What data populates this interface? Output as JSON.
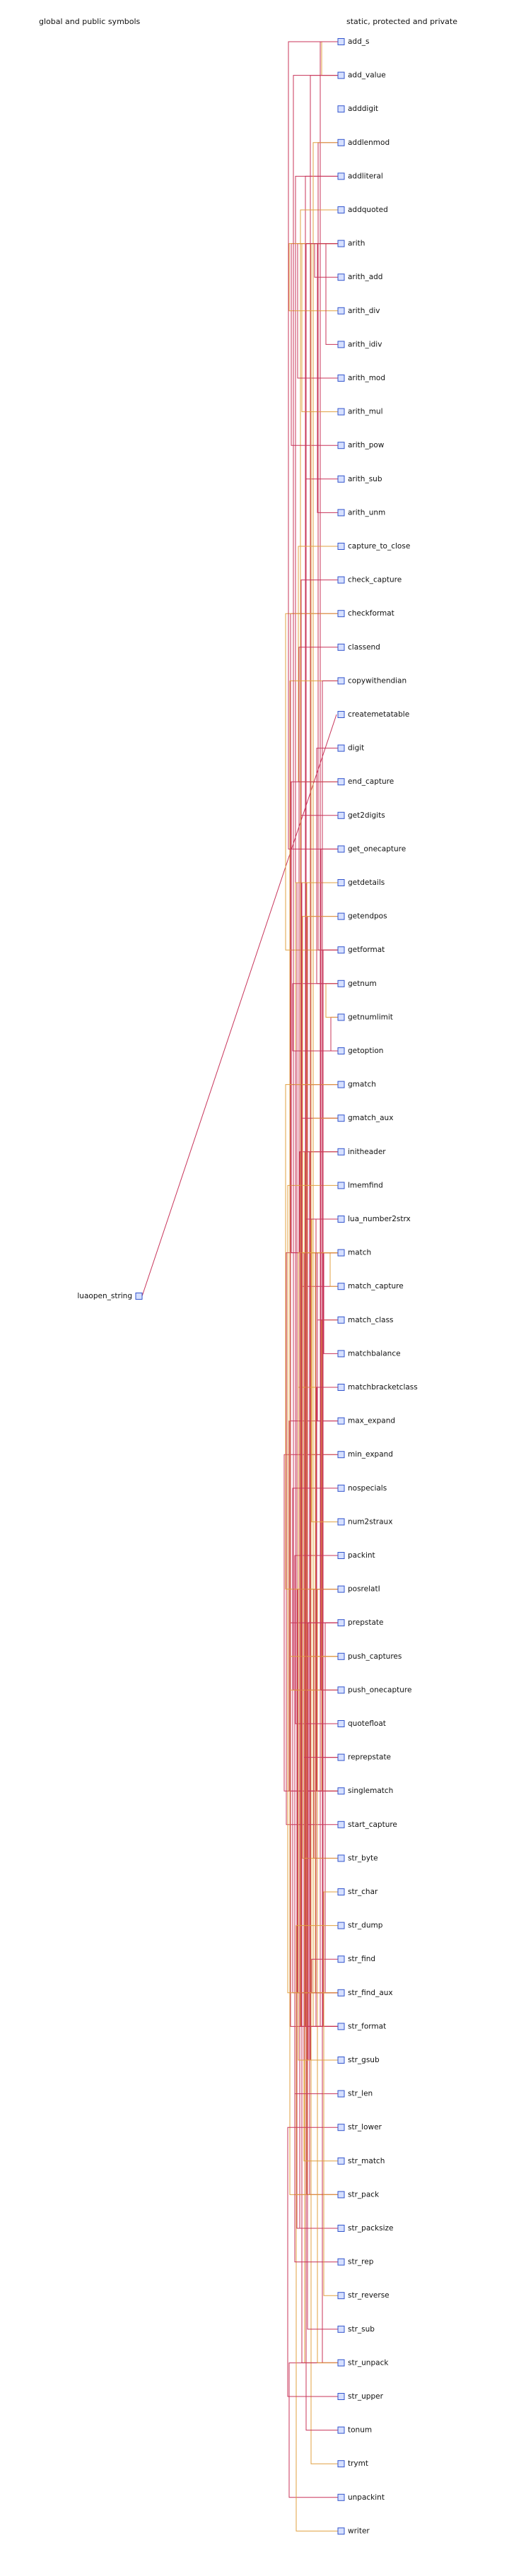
{
  "headers": {
    "left": "global and public symbols",
    "right": "static, protected and private"
  },
  "public_symbols": [
    "luaopen_string"
  ],
  "private_symbols": [
    "add_s",
    "add_value",
    "adddigit",
    "addlenmod",
    "addliteral",
    "addquoted",
    "arith",
    "arith_add",
    "arith_div",
    "arith_idiv",
    "arith_mod",
    "arith_mul",
    "arith_pow",
    "arith_sub",
    "arith_unm",
    "capture_to_close",
    "check_capture",
    "checkformat",
    "classend",
    "copywithendian",
    "createmetatable",
    "digit",
    "end_capture",
    "get2digits",
    "get_onecapture",
    "getdetails",
    "getendpos",
    "getformat",
    "getnum",
    "getnumlimit",
    "getoption",
    "gmatch",
    "gmatch_aux",
    "initheader",
    "lmemfind",
    "lua_number2strx",
    "match",
    "match_capture",
    "match_class",
    "matchbalance",
    "matchbracketclass",
    "max_expand",
    "min_expand",
    "nospecials",
    "num2straux",
    "packint",
    "posrelatI",
    "prepstate",
    "push_captures",
    "push_onecapture",
    "quotefloat",
    "reprepstate",
    "singlematch",
    "start_capture",
    "str_byte",
    "str_char",
    "str_dump",
    "str_find",
    "str_find_aux",
    "str_format",
    "str_gsub",
    "str_len",
    "str_lower",
    "str_match",
    "str_pack",
    "str_packsize",
    "str_rep",
    "str_reverse",
    "str_sub",
    "str_unpack",
    "str_upper",
    "tonum",
    "trymt",
    "unpackint",
    "writer"
  ],
  "colors": {
    "node_fill": "#d6e0ff",
    "node_stroke": "#3355cc",
    "edge_primary": "#c8345a",
    "edge_secondary": "#e0a040",
    "text": "#111111"
  },
  "edges": [
    [
      "luaopen_string",
      "createmetatable"
    ],
    [
      "str_format",
      "add_s"
    ],
    [
      "add_value",
      "add_s"
    ],
    [
      "str_gsub",
      "add_value"
    ],
    [
      "str_format",
      "addliteral"
    ],
    [
      "str_format",
      "addquoted"
    ],
    [
      "addliteral",
      "quotefloat"
    ],
    [
      "str_format",
      "checkformat"
    ],
    [
      "checkformat",
      "getformat"
    ],
    [
      "str_format",
      "getformat"
    ],
    [
      "getformat",
      "addlenmod"
    ],
    [
      "str_format",
      "addlenmod"
    ],
    [
      "arith_add",
      "arith"
    ],
    [
      "arith_sub",
      "arith"
    ],
    [
      "arith_mul",
      "arith"
    ],
    [
      "arith_mod",
      "arith"
    ],
    [
      "arith_pow",
      "arith"
    ],
    [
      "arith_div",
      "arith"
    ],
    [
      "arith_idiv",
      "arith"
    ],
    [
      "arith_unm",
      "arith"
    ],
    [
      "arith",
      "trymt"
    ],
    [
      "arith",
      "tonum"
    ],
    [
      "match_capture",
      "check_capture"
    ],
    [
      "end_capture",
      "capture_to_close"
    ],
    [
      "match",
      "end_capture"
    ],
    [
      "match",
      "start_capture"
    ],
    [
      "match",
      "match_capture"
    ],
    [
      "match",
      "matchbalance"
    ],
    [
      "match",
      "max_expand"
    ],
    [
      "match",
      "min_expand"
    ],
    [
      "match",
      "singlematch"
    ],
    [
      "match",
      "classend"
    ],
    [
      "match",
      "matchbracketclass"
    ],
    [
      "max_expand",
      "singlematch"
    ],
    [
      "min_expand",
      "singlematch"
    ],
    [
      "singlematch",
      "match_class"
    ],
    [
      "singlematch",
      "matchbracketclass"
    ],
    [
      "matchbracketclass",
      "match_class"
    ],
    [
      "str_pack",
      "getdetails"
    ],
    [
      "str_unpack",
      "getdetails"
    ],
    [
      "str_packsize",
      "getdetails"
    ],
    [
      "getdetails",
      "getoption"
    ],
    [
      "getoption",
      "getnum"
    ],
    [
      "getoption",
      "getnumlimit"
    ],
    [
      "getnumlimit",
      "getnum"
    ],
    [
      "getnum",
      "digit"
    ],
    [
      "str_pack",
      "initheader"
    ],
    [
      "str_unpack",
      "initheader"
    ],
    [
      "str_packsize",
      "initheader"
    ],
    [
      "str_pack",
      "packint"
    ],
    [
      "str_pack",
      "copywithendian"
    ],
    [
      "str_unpack",
      "unpackint"
    ],
    [
      "str_unpack",
      "copywithendian"
    ],
    [
      "str_unpack",
      "posrelatI"
    ],
    [
      "str_byte",
      "posrelatI"
    ],
    [
      "str_sub",
      "getendpos"
    ],
    [
      "str_byte",
      "getendpos"
    ],
    [
      "str_find_aux",
      "posrelatI"
    ],
    [
      "str_find_aux",
      "nospecials"
    ],
    [
      "str_find_aux",
      "lmemfind"
    ],
    [
      "str_find_aux",
      "prepstate"
    ],
    [
      "str_find_aux",
      "reprepstate"
    ],
    [
      "str_find_aux",
      "match"
    ],
    [
      "str_find_aux",
      "push_captures"
    ],
    [
      "str_find",
      "str_find_aux"
    ],
    [
      "str_match",
      "str_find_aux"
    ],
    [
      "gmatch",
      "gmatch_aux"
    ],
    [
      "gmatch",
      "prepstate"
    ],
    [
      "gmatch",
      "posrelatI"
    ],
    [
      "gmatch_aux",
      "reprepstate"
    ],
    [
      "gmatch_aux",
      "match"
    ],
    [
      "gmatch_aux",
      "push_captures"
    ],
    [
      "str_gsub",
      "prepstate"
    ],
    [
      "str_gsub",
      "reprepstate"
    ],
    [
      "str_gsub",
      "match"
    ],
    [
      "add_value",
      "push_onecapture"
    ],
    [
      "add_s",
      "get_onecapture"
    ],
    [
      "push_captures",
      "push_onecapture"
    ],
    [
      "push_onecapture",
      "get_onecapture"
    ],
    [
      "str_format",
      "lua_number2strx"
    ],
    [
      "lua_number2strx",
      "num2straux"
    ],
    [
      "quotefloat",
      "lua_number2strx"
    ],
    [
      "str_format",
      "get2digits"
    ],
    [
      "str_dump",
      "writer"
    ],
    [
      "str_rep",
      "str_len"
    ],
    [
      "str_lower",
      "str_upper"
    ],
    [
      "str_reverse",
      "str_char"
    ]
  ]
}
